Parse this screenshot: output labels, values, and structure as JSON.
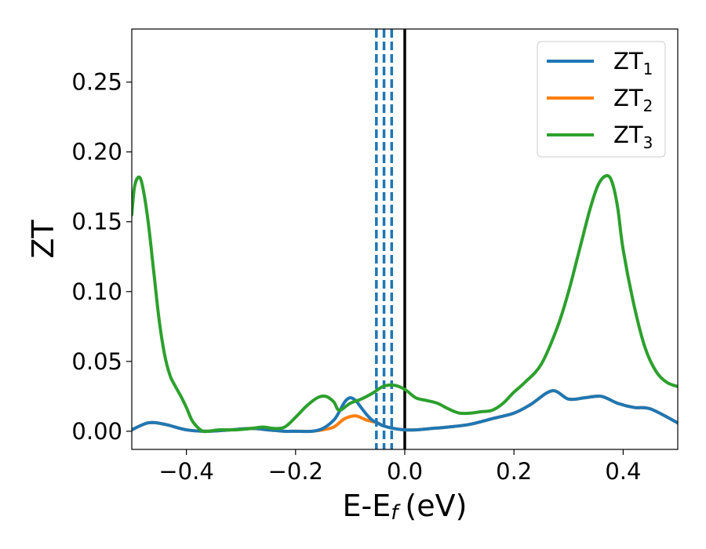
{
  "chart_data": {
    "type": "line",
    "xlabel": "E-E",
    "xlabel_sub": "f",
    "xlabel_unit": "(eV)",
    "ylabel": "ZT",
    "xlim": [
      -0.5,
      0.5
    ],
    "ylim": [
      -0.013,
      0.288
    ],
    "x_ticks": [
      -0.4,
      -0.2,
      0.0,
      0.2,
      0.4
    ],
    "x_tick_labels": [
      "−0.4",
      "−0.2",
      "0.0",
      "0.2",
      "0.4"
    ],
    "y_ticks": [
      0.0,
      0.05,
      0.1,
      0.15,
      0.2,
      0.25
    ],
    "y_tick_labels": [
      "0.00",
      "0.05",
      "0.10",
      "0.15",
      "0.20",
      "0.25"
    ],
    "grid": false,
    "legend_position": "top-right",
    "colors": {
      "zt1": "#1f77b4",
      "zt2": "#ff7f0e",
      "zt3": "#2ca02c",
      "fermi": "#000000"
    },
    "series": [
      {
        "name": "ZT",
        "name_sub": "1",
        "color": "#1f77b4",
        "x": [
          -0.5,
          -0.47,
          -0.44,
          -0.4,
          -0.36,
          -0.32,
          -0.28,
          -0.25,
          -0.22,
          -0.2,
          -0.17,
          -0.15,
          -0.13,
          -0.12,
          -0.11,
          -0.1,
          -0.09,
          -0.08,
          -0.07,
          -0.06,
          -0.05,
          -0.04,
          -0.02,
          0.0,
          0.02,
          0.05,
          0.08,
          0.12,
          0.16,
          0.2,
          0.23,
          0.27,
          0.3,
          0.33,
          0.36,
          0.39,
          0.42,
          0.45,
          0.5
        ],
        "y": [
          0.001,
          0.006,
          0.005,
          0.001,
          0.0,
          0.001,
          0.002,
          0.001,
          0.0,
          0.0,
          0.0,
          0.002,
          0.008,
          0.014,
          0.021,
          0.024,
          0.022,
          0.017,
          0.012,
          0.008,
          0.006,
          0.004,
          0.002,
          0.001,
          0.001,
          0.002,
          0.003,
          0.005,
          0.009,
          0.013,
          0.019,
          0.029,
          0.023,
          0.024,
          0.025,
          0.02,
          0.017,
          0.016,
          0.006
        ]
      },
      {
        "name": "ZT",
        "name_sub": "2",
        "color": "#ff7f0e",
        "x": [
          -0.5,
          -0.47,
          -0.44,
          -0.4,
          -0.36,
          -0.32,
          -0.28,
          -0.25,
          -0.22,
          -0.2,
          -0.17,
          -0.15,
          -0.13,
          -0.11,
          -0.09,
          -0.07,
          -0.05,
          -0.04,
          -0.02,
          0.0,
          0.02,
          0.05,
          0.08,
          0.12,
          0.16,
          0.2,
          0.23,
          0.27,
          0.3,
          0.33,
          0.36,
          0.39,
          0.42,
          0.45,
          0.5
        ],
        "y": [
          0.001,
          0.006,
          0.005,
          0.001,
          0.0,
          0.001,
          0.002,
          0.001,
          0.0,
          0.0,
          0.0,
          0.001,
          0.003,
          0.009,
          0.011,
          0.008,
          0.006,
          0.004,
          0.002,
          0.001,
          0.001,
          0.002,
          0.003,
          0.005,
          0.009,
          0.013,
          0.019,
          0.029,
          0.023,
          0.024,
          0.025,
          0.02,
          0.017,
          0.016,
          0.006
        ]
      },
      {
        "name": "ZT",
        "name_sub": "3",
        "color": "#2ca02c",
        "x": [
          -0.5,
          -0.495,
          -0.487,
          -0.48,
          -0.47,
          -0.46,
          -0.45,
          -0.44,
          -0.43,
          -0.42,
          -0.41,
          -0.4,
          -0.39,
          -0.38,
          -0.37,
          -0.36,
          -0.34,
          -0.31,
          -0.28,
          -0.26,
          -0.24,
          -0.22,
          -0.2,
          -0.18,
          -0.16,
          -0.145,
          -0.13,
          -0.12,
          -0.1,
          -0.08,
          -0.06,
          -0.04,
          -0.02,
          0.0,
          0.02,
          0.04,
          0.06,
          0.08,
          0.1,
          0.12,
          0.14,
          0.16,
          0.18,
          0.2,
          0.22,
          0.25,
          0.28,
          0.3,
          0.32,
          0.34,
          0.355,
          0.37,
          0.38,
          0.39,
          0.4,
          0.42,
          0.44,
          0.46,
          0.48,
          0.5
        ],
        "y": [
          0.155,
          0.175,
          0.182,
          0.175,
          0.15,
          0.115,
          0.08,
          0.055,
          0.04,
          0.032,
          0.025,
          0.017,
          0.008,
          0.003,
          0.0,
          0.0,
          0.001,
          0.001,
          0.002,
          0.003,
          0.002,
          0.003,
          0.01,
          0.018,
          0.024,
          0.025,
          0.021,
          0.015,
          0.02,
          0.023,
          0.027,
          0.032,
          0.033,
          0.03,
          0.024,
          0.022,
          0.02,
          0.016,
          0.013,
          0.013,
          0.014,
          0.015,
          0.02,
          0.028,
          0.035,
          0.048,
          0.075,
          0.1,
          0.13,
          0.16,
          0.177,
          0.183,
          0.178,
          0.16,
          0.13,
          0.09,
          0.06,
          0.043,
          0.035,
          0.032
        ]
      }
    ],
    "vertical_lines": [
      {
        "x": -0.052,
        "style": "dashed",
        "color": "#1f77b4"
      },
      {
        "x": -0.038,
        "style": "dashed",
        "color": "#1f77b4"
      },
      {
        "x": -0.024,
        "style": "dashed",
        "color": "#1f77b4"
      },
      {
        "x": 0.0,
        "style": "solid",
        "color": "#000000"
      }
    ]
  }
}
